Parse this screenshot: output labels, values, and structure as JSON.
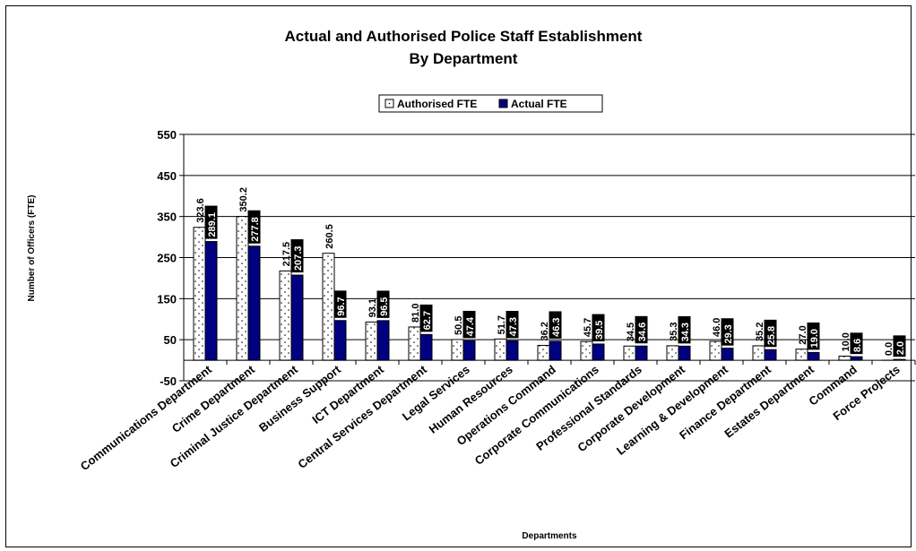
{
  "chart_data": {
    "type": "bar",
    "title": "Actual and Authorised Police Staff Establishment",
    "subtitle": "By Department",
    "xlabel": "Departments",
    "ylabel": "Number of Officers (FTE)",
    "ylim": [
      -50,
      550
    ],
    "yticks": [
      "550",
      "450",
      "350",
      "250",
      "150",
      "50",
      "-50"
    ],
    "ytick_values": [
      550,
      450,
      350,
      250,
      150,
      50,
      -50
    ],
    "grid": true,
    "legend_position": "top-center",
    "categories": [
      "Communications Department",
      "Crime Department",
      "Criminal Justice Department",
      "Business Support",
      "ICT Department",
      "Central Services Department",
      "Legal Services",
      "Human Resources",
      "Operations Command",
      "Corporate Communications",
      "Professional Standards",
      "Corporate Development",
      "Learning & Development",
      "Finance Department",
      "Estates Department",
      "Command",
      "Force Projects"
    ],
    "series": [
      {
        "name": "Authorised FTE",
        "color": "#ffffff",
        "values": [
          323.6,
          350.2,
          217.5,
          260.5,
          93.1,
          81.0,
          50.5,
          51.7,
          36.2,
          45.7,
          34.5,
          35.3,
          46.0,
          35.2,
          27.0,
          10.0,
          0.0
        ],
        "labels": [
          "323.6",
          "350.2",
          "217.5",
          "260.5",
          "93.1",
          "81.0",
          "50.5",
          "51.7",
          "36.2",
          "45.7",
          "34.5",
          "35.3",
          "46.0",
          "35.2",
          "27.0",
          "10.0",
          "0.0"
        ]
      },
      {
        "name": "Actual FTE",
        "color": "#000080",
        "values": [
          289.1,
          277.8,
          207.3,
          96.7,
          96.5,
          62.7,
          47.4,
          47.3,
          46.3,
          39.5,
          34.6,
          34.3,
          29.3,
          25.8,
          19.0,
          8.6,
          2.0
        ],
        "labels": [
          "289.1",
          "277.8",
          "207.3",
          "96.7",
          "96.5",
          "62.7",
          "47.4",
          "47.3",
          "46.3",
          "39.5",
          "34.6",
          "34.3",
          "29.3",
          "25.8",
          "19.0",
          "8.6",
          "2.0"
        ]
      }
    ]
  }
}
